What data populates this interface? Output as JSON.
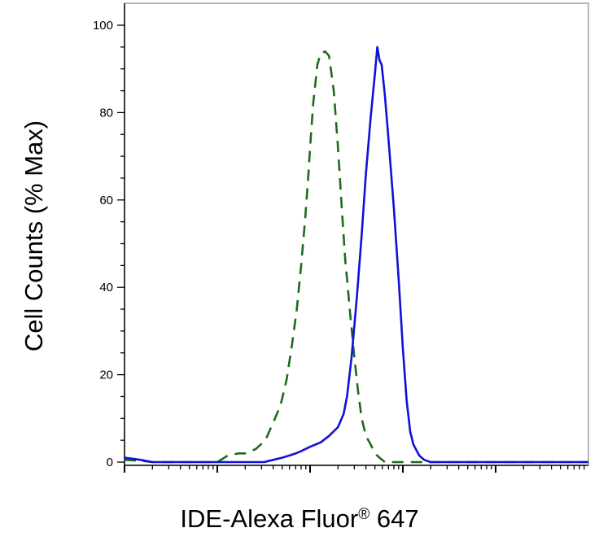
{
  "chart_data": {
    "type": "line",
    "title": "",
    "xlabel": "IDE-Alexa Fluor",
    "xlabel_mark": "®",
    "xlabel_suffix": " 647",
    "ylabel": "Cell Counts (% Max)",
    "xscale": "log",
    "xlim": [
      10,
      1000000
    ],
    "ylim": [
      0,
      105
    ],
    "yticks": [
      0,
      20,
      40,
      60,
      80,
      100
    ],
    "ytick_labels": [
      "0",
      "20",
      "40",
      "60",
      "80",
      "100"
    ],
    "grid": false,
    "legend": "none",
    "series": [
      {
        "style": "dashed",
        "color": "#1e6b1e",
        "x": [
          10,
          15,
          20,
          50,
          80,
          100,
          130,
          170,
          200,
          260,
          330,
          400,
          480,
          560,
          640,
          720,
          800,
          880,
          960,
          1000,
          1080,
          1200,
          1300,
          1450,
          1600,
          1800,
          2000,
          2200,
          2400,
          2500,
          2700,
          3000,
          3300,
          3600,
          4000,
          4500,
          5000,
          5600,
          6400,
          7000,
          8000,
          9000,
          10000,
          12000,
          16000,
          30000,
          100000,
          1000000
        ],
        "y": [
          0.5,
          0.3,
          0,
          0,
          0,
          0,
          1.5,
          2,
          2,
          3,
          5,
          9,
          13,
          19,
          27,
          35,
          45,
          55,
          66,
          72,
          82,
          91,
          93.5,
          94,
          93,
          85,
          72,
          58,
          46,
          42,
          34,
          24,
          16,
          10,
          6,
          4,
          2,
          1,
          0,
          0,
          0,
          0,
          0,
          0,
          0,
          0,
          0,
          0
        ]
      },
      {
        "style": "solid",
        "color": "#1010d8",
        "x": [
          10,
          15,
          20,
          50,
          150,
          200,
          250,
          320,
          400,
          500,
          600,
          700,
          800,
          1000,
          1300,
          1600,
          2000,
          2300,
          2500,
          2800,
          3200,
          3600,
          4000,
          4500,
          5000,
          5300,
          5600,
          5900,
          6400,
          7000,
          8000,
          9000,
          10000,
          11000,
          12000,
          13000,
          15000,
          17000,
          20000,
          30000,
          100000,
          1000000
        ],
        "y": [
          1,
          0.5,
          0,
          0,
          0,
          0,
          0,
          0,
          0.5,
          1,
          1.5,
          2,
          2.5,
          3.5,
          4.5,
          6,
          8,
          11,
          15,
          24,
          38,
          52,
          66,
          79,
          89,
          95,
          92,
          91,
          84,
          74,
          58,
          42,
          26,
          14,
          7,
          4,
          1.5,
          0.5,
          0,
          0,
          0,
          0
        ]
      }
    ]
  }
}
